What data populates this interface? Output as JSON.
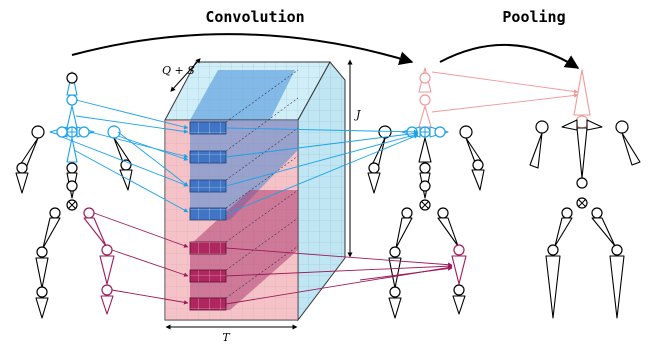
{
  "titles": {
    "convolution": "Convolution",
    "pooling": "Pooling"
  },
  "labels": {
    "q_plus_s": "Q + S",
    "j": "J",
    "t": "T"
  },
  "colors": {
    "upper_body": "#1aa3e8",
    "lower_body": "#9e1a5a",
    "pooled_joint": "#f09a9a",
    "default_joint": "#000000",
    "tensor_blue": "#4d8fd6",
    "tensor_pink": "#e0a0b0",
    "tensor_cyan": "#bde8f2"
  },
  "icons": {
    "upper_joint_marker": "plus-circle-icon",
    "lower_joint_marker": "cross-circle-icon"
  }
}
